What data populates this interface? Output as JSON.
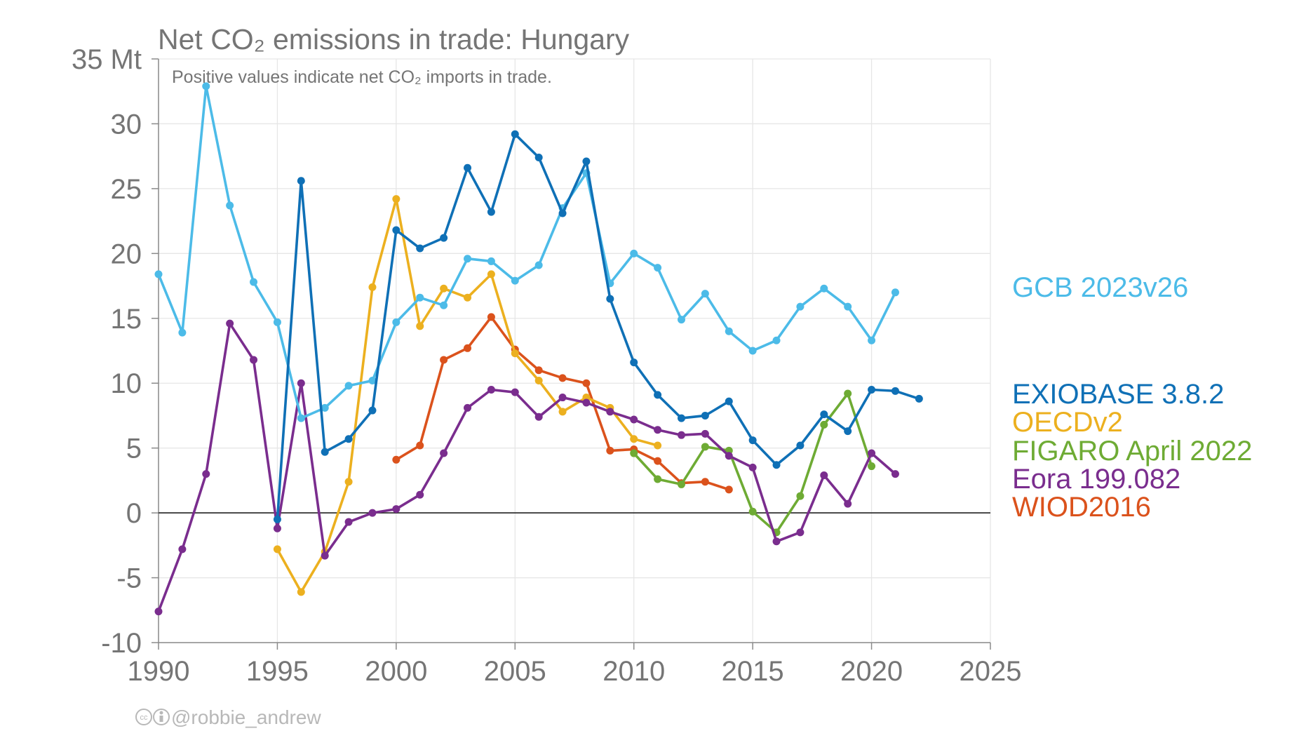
{
  "chart_data": {
    "type": "line",
    "title": "Net CO₂ emissions in trade: Hungary",
    "subtitle": "Positive values indicate net CO₂ imports in trade.",
    "ylabel": "",
    "xlabel": "",
    "xlim": [
      1990,
      2025
    ],
    "ylim": [
      -10,
      35
    ],
    "x_ticks": [
      "1990",
      "1995",
      "2000",
      "2005",
      "2010",
      "2015",
      "2020",
      "2025"
    ],
    "y_ticks": [
      "-10",
      "-5",
      "0",
      "5",
      "10",
      "15",
      "20",
      "25",
      "30",
      "35 Mt"
    ],
    "grid": true,
    "legend_position": "right",
    "credit": "@robbie_andrew",
    "series": [
      {
        "name": "GCB 2023v26",
        "color": "#4cbbe8",
        "x": [
          1990,
          1991,
          1992,
          1993,
          1994,
          1995,
          1996,
          1997,
          1998,
          1999,
          2000,
          2001,
          2002,
          2003,
          2004,
          2005,
          2006,
          2007,
          2008,
          2009,
          2010,
          2011,
          2012,
          2013,
          2014,
          2015,
          2016,
          2017,
          2018,
          2019,
          2020,
          2021
        ],
        "y": [
          18.4,
          13.9,
          32.9,
          23.7,
          17.8,
          14.7,
          7.3,
          8.1,
          9.8,
          10.2,
          14.7,
          16.6,
          16.0,
          19.6,
          19.4,
          17.9,
          19.1,
          23.5,
          26.2,
          17.7,
          20.0,
          18.9,
          14.9,
          16.9,
          14.0,
          12.5,
          13.3,
          15.9,
          17.3,
          15.9,
          13.3,
          17.0
        ]
      },
      {
        "name": "EXIOBASE 3.8.2",
        "color": "#0f70b6",
        "x": [
          1995,
          1996,
          1997,
          1998,
          1999,
          2000,
          2001,
          2002,
          2003,
          2004,
          2005,
          2006,
          2007,
          2008,
          2009,
          2010,
          2011,
          2012,
          2013,
          2014,
          2015,
          2016,
          2017,
          2018,
          2019,
          2020,
          2021,
          2022
        ],
        "y": [
          -0.5,
          25.6,
          4.7,
          5.7,
          7.9,
          21.8,
          20.4,
          21.2,
          26.6,
          23.2,
          29.2,
          27.4,
          23.1,
          27.1,
          16.5,
          11.6,
          9.1,
          7.3,
          7.5,
          8.6,
          5.6,
          3.7,
          5.2,
          7.6,
          6.3,
          9.5,
          9.4,
          8.8
        ]
      },
      {
        "name": "OECDv2",
        "color": "#ecb01f",
        "x": [
          1995,
          1996,
          1997,
          1998,
          1999,
          2000,
          2001,
          2002,
          2003,
          2004,
          2005,
          2006,
          2007,
          2008,
          2009,
          2010,
          2011
        ],
        "y": [
          -2.8,
          -6.1,
          -3.0,
          2.4,
          17.4,
          24.2,
          14.4,
          17.3,
          16.6,
          18.4,
          12.3,
          10.2,
          7.8,
          8.9,
          8.1,
          5.7,
          5.2
        ]
      },
      {
        "name": "FIGARO April 2022",
        "color": "#6eab34",
        "x": [
          2010,
          2011,
          2012,
          2013,
          2014,
          2015,
          2016,
          2017,
          2018,
          2019,
          2020
        ],
        "y": [
          4.6,
          2.6,
          2.2,
          5.1,
          4.8,
          0.1,
          -1.5,
          1.3,
          6.8,
          9.2,
          3.6
        ]
      },
      {
        "name": "Eora 199.082",
        "color": "#7a2d8e",
        "x": [
          1990,
          1991,
          1992,
          1993,
          1994,
          1995,
          1996,
          1997,
          1998,
          1999,
          2000,
          2001,
          2002,
          2003,
          2004,
          2005,
          2006,
          2007,
          2008,
          2009,
          2010,
          2011,
          2012,
          2013,
          2014,
          2015,
          2016,
          2017,
          2018,
          2019,
          2020,
          2021
        ],
        "y": [
          -7.6,
          -2.8,
          3.0,
          14.6,
          11.8,
          -1.2,
          10.0,
          -3.3,
          -0.7,
          0.0,
          0.3,
          1.4,
          4.6,
          8.1,
          9.5,
          9.3,
          7.4,
          8.9,
          8.5,
          7.8,
          7.2,
          6.4,
          6.0,
          6.1,
          4.4,
          3.5,
          -2.2,
          -1.5,
          2.9,
          0.7,
          4.6,
          3.0
        ]
      },
      {
        "name": "WIOD2016",
        "color": "#db521c",
        "x": [
          2000,
          2001,
          2002,
          2003,
          2004,
          2005,
          2006,
          2007,
          2008,
          2009,
          2010,
          2011,
          2012,
          2013,
          2014
        ],
        "y": [
          4.1,
          5.2,
          11.8,
          12.7,
          15.1,
          12.6,
          11.0,
          10.4,
          10.0,
          4.8,
          4.9,
          4.0,
          2.3,
          2.4,
          1.8
        ]
      }
    ]
  }
}
